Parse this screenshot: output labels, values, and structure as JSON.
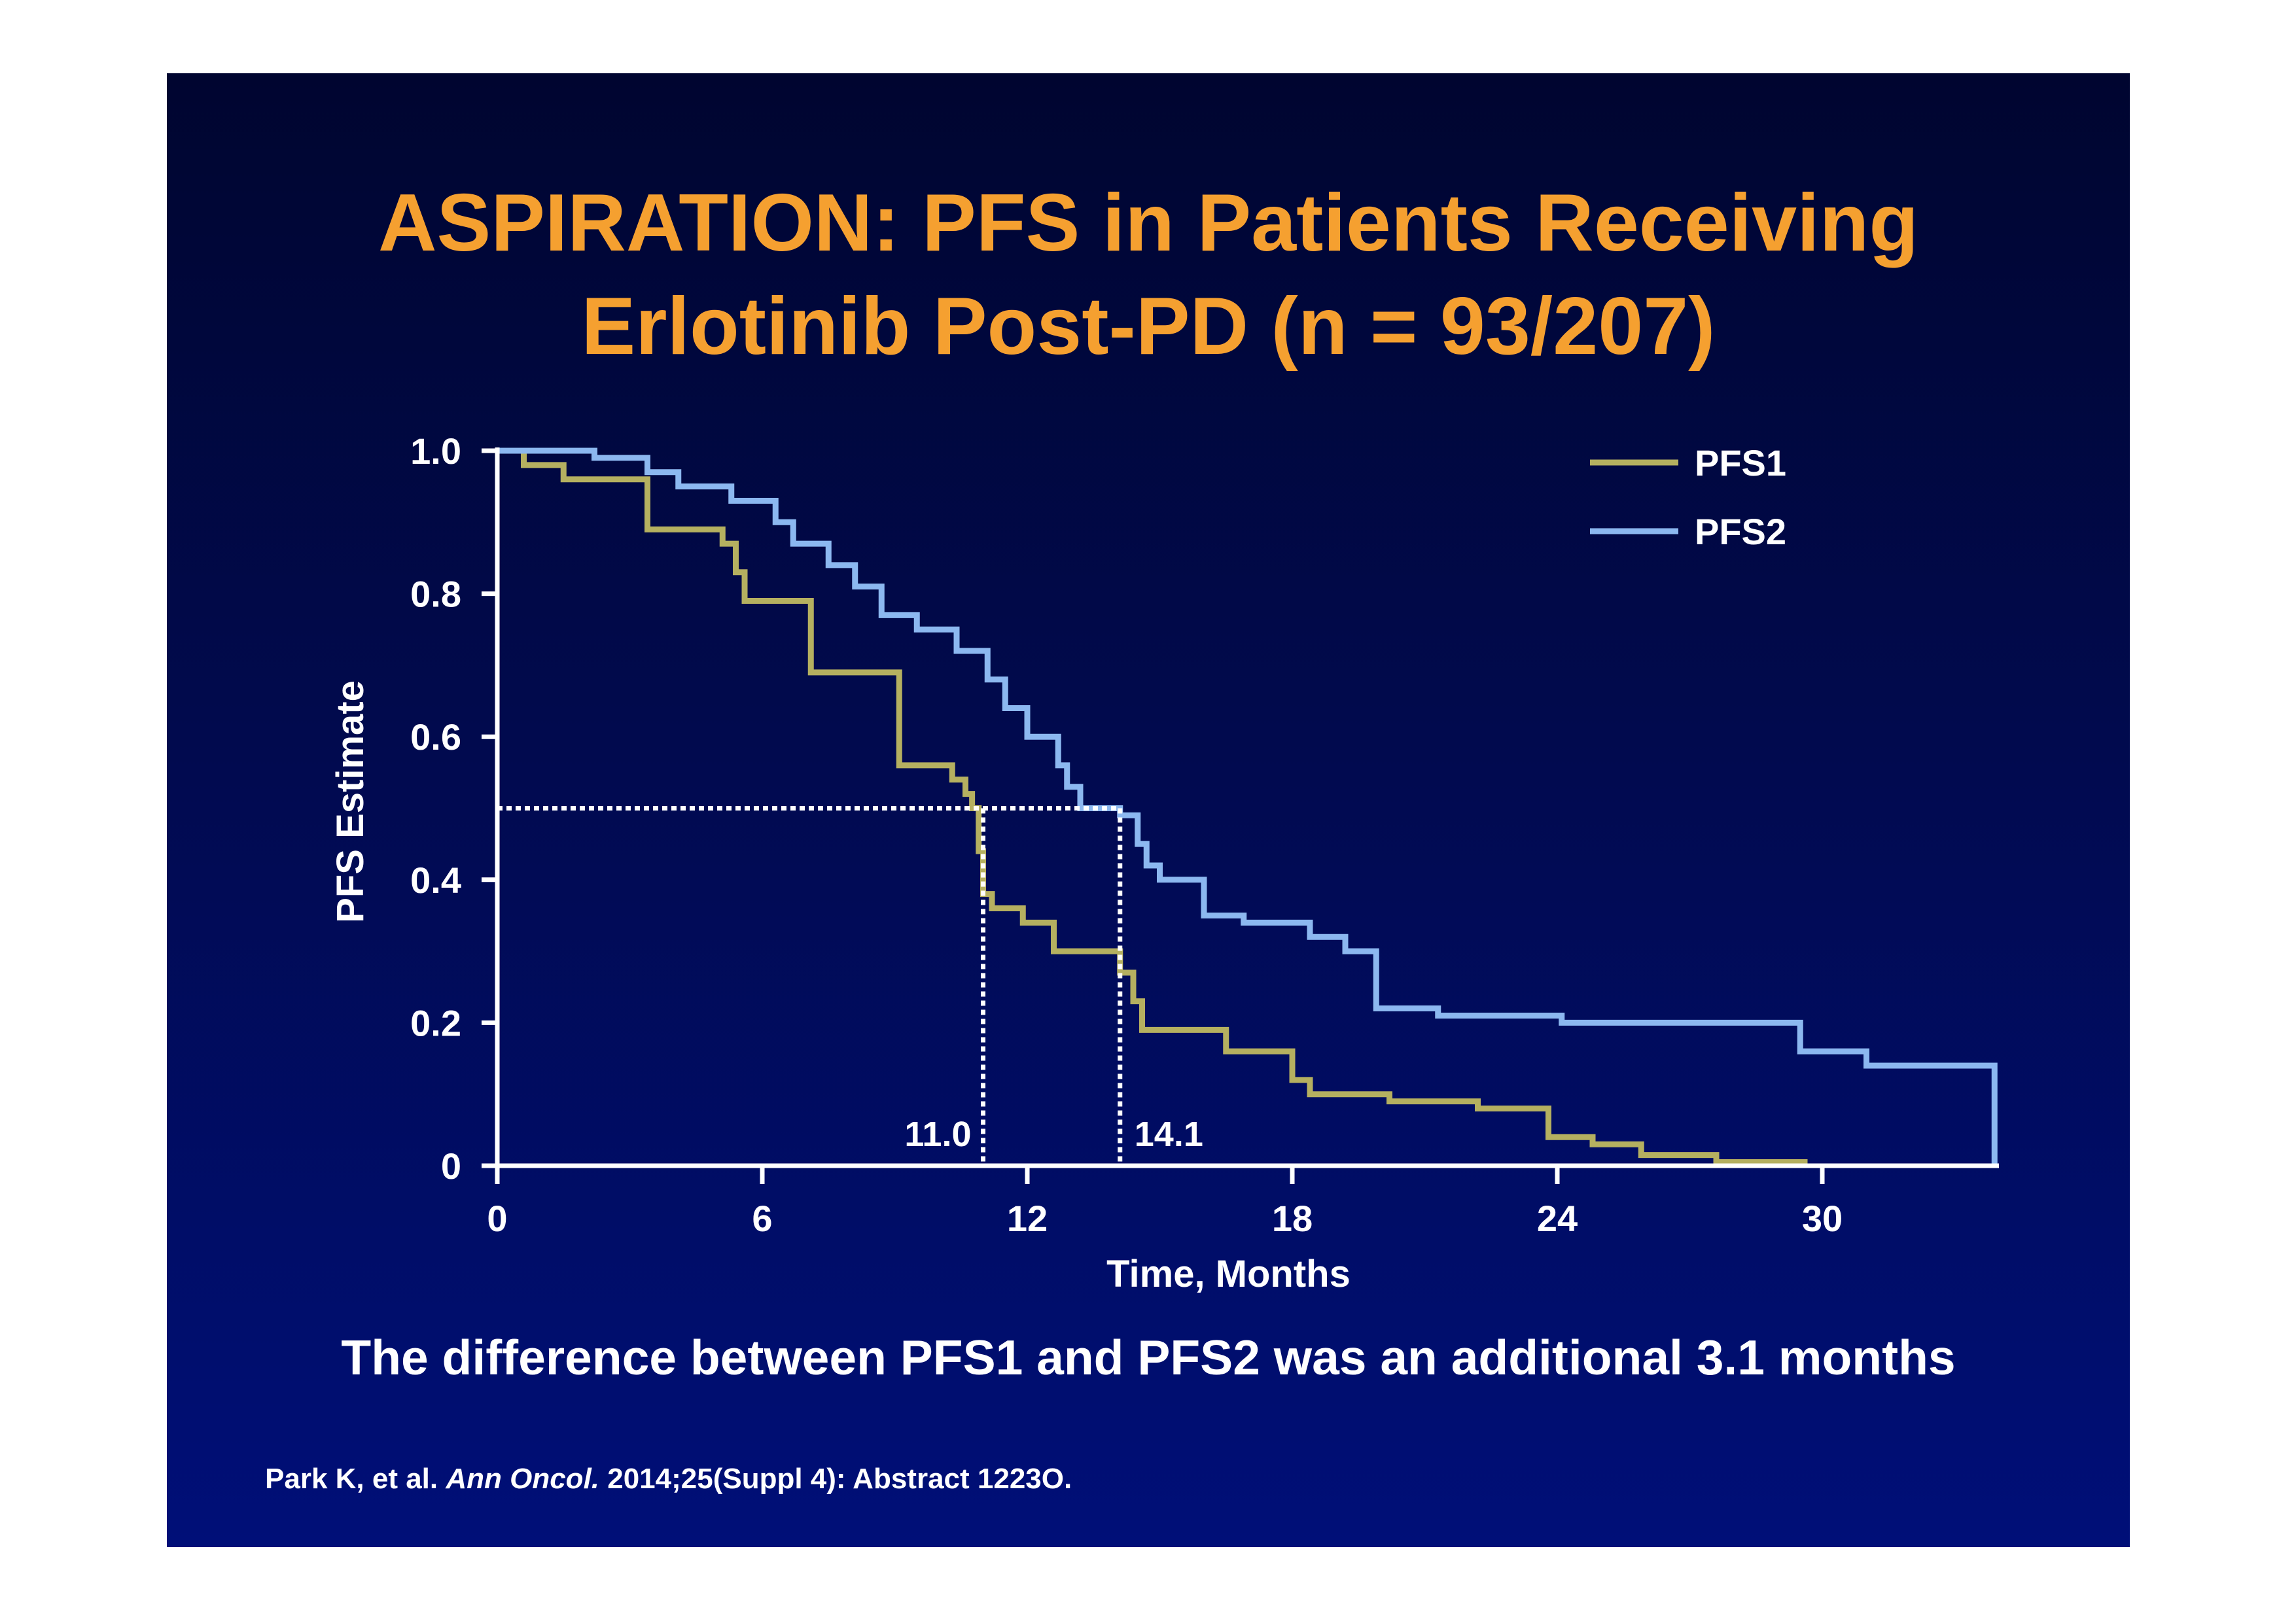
{
  "title_line1": "ASPIRATION: PFS in Patients Receiving",
  "title_line2": "Erlotinib Post-PD (n = 93/207)",
  "summary": "The difference between PFS1 and PFS2 was an additional 3.1 months",
  "citation": {
    "prefix": "Park K, et al. ",
    "journal": "Ann Oncol.",
    "suffix": " 2014;25(Suppl 4): Abstract 1223O."
  },
  "colors": {
    "title": "#f5a030",
    "pfs1": "#b5b060",
    "pfs2": "#8cb8f0",
    "median1_label": "#ffee00",
    "median2_label": "#8cb8f0",
    "axis": "#ffffff"
  },
  "chart_data": {
    "type": "line",
    "step": true,
    "xlabel": "Time, Months",
    "ylabel": "PFS Estimate",
    "xlim": [
      0,
      34
    ],
    "ylim": [
      0,
      1
    ],
    "xticks": [
      0,
      6,
      12,
      18,
      24,
      30
    ],
    "xtick_labels": [
      "0",
      "6",
      "12",
      "18",
      "24",
      "30"
    ],
    "yticks": [
      0,
      0.2,
      0.4,
      0.6,
      0.8,
      1.0
    ],
    "ytick_labels": [
      "0",
      "0.2",
      "0.4",
      "0.6",
      "0.8",
      "1.0"
    ],
    "legend_position": "top-right",
    "series": [
      {
        "name": "PFS1",
        "color": "#b5b060",
        "x": [
          0,
          0.6,
          1.5,
          3.4,
          5.1,
          5.4,
          5.6,
          7.1,
          9.1,
          10.3,
          10.6,
          10.75,
          10.9,
          11.0,
          11.2,
          11.9,
          12.6,
          14.1,
          14.4,
          14.6,
          16.5,
          18.0,
          18.4,
          20.2,
          22.2,
          23.8,
          24.8,
          25.9,
          27.6,
          29.6
        ],
        "y": [
          1.0,
          0.98,
          0.96,
          0.89,
          0.87,
          0.83,
          0.79,
          0.69,
          0.56,
          0.54,
          0.52,
          0.5,
          0.44,
          0.38,
          0.36,
          0.34,
          0.3,
          0.27,
          0.23,
          0.19,
          0.16,
          0.12,
          0.1,
          0.09,
          0.08,
          0.04,
          0.03,
          0.015,
          0.005,
          0.0
        ]
      },
      {
        "name": "PFS2",
        "color": "#8cb8f0",
        "x": [
          0,
          2.2,
          3.4,
          4.1,
          5.3,
          6.3,
          6.7,
          7.5,
          8.1,
          8.7,
          9.5,
          10.4,
          11.1,
          11.5,
          12.0,
          12.7,
          12.9,
          13.2,
          13.5,
          14.1,
          14.5,
          14.7,
          15.0,
          16.0,
          16.9,
          18.4,
          19.2,
          19.9,
          21.3,
          24.1,
          29.5,
          31.0,
          33.9
        ],
        "y": [
          1.0,
          0.99,
          0.97,
          0.95,
          0.93,
          0.9,
          0.87,
          0.84,
          0.81,
          0.77,
          0.75,
          0.72,
          0.68,
          0.64,
          0.6,
          0.56,
          0.53,
          0.5,
          0.5,
          0.49,
          0.45,
          0.42,
          0.4,
          0.35,
          0.34,
          0.32,
          0.3,
          0.22,
          0.21,
          0.2,
          0.16,
          0.14,
          0.0
        ]
      }
    ],
    "reference_line": {
      "y": 0.5
    },
    "medians": [
      {
        "series": "PFS1",
        "x": 11.0,
        "label": "11.0"
      },
      {
        "series": "PFS2",
        "x": 14.1,
        "label": "14.1"
      }
    ]
  }
}
